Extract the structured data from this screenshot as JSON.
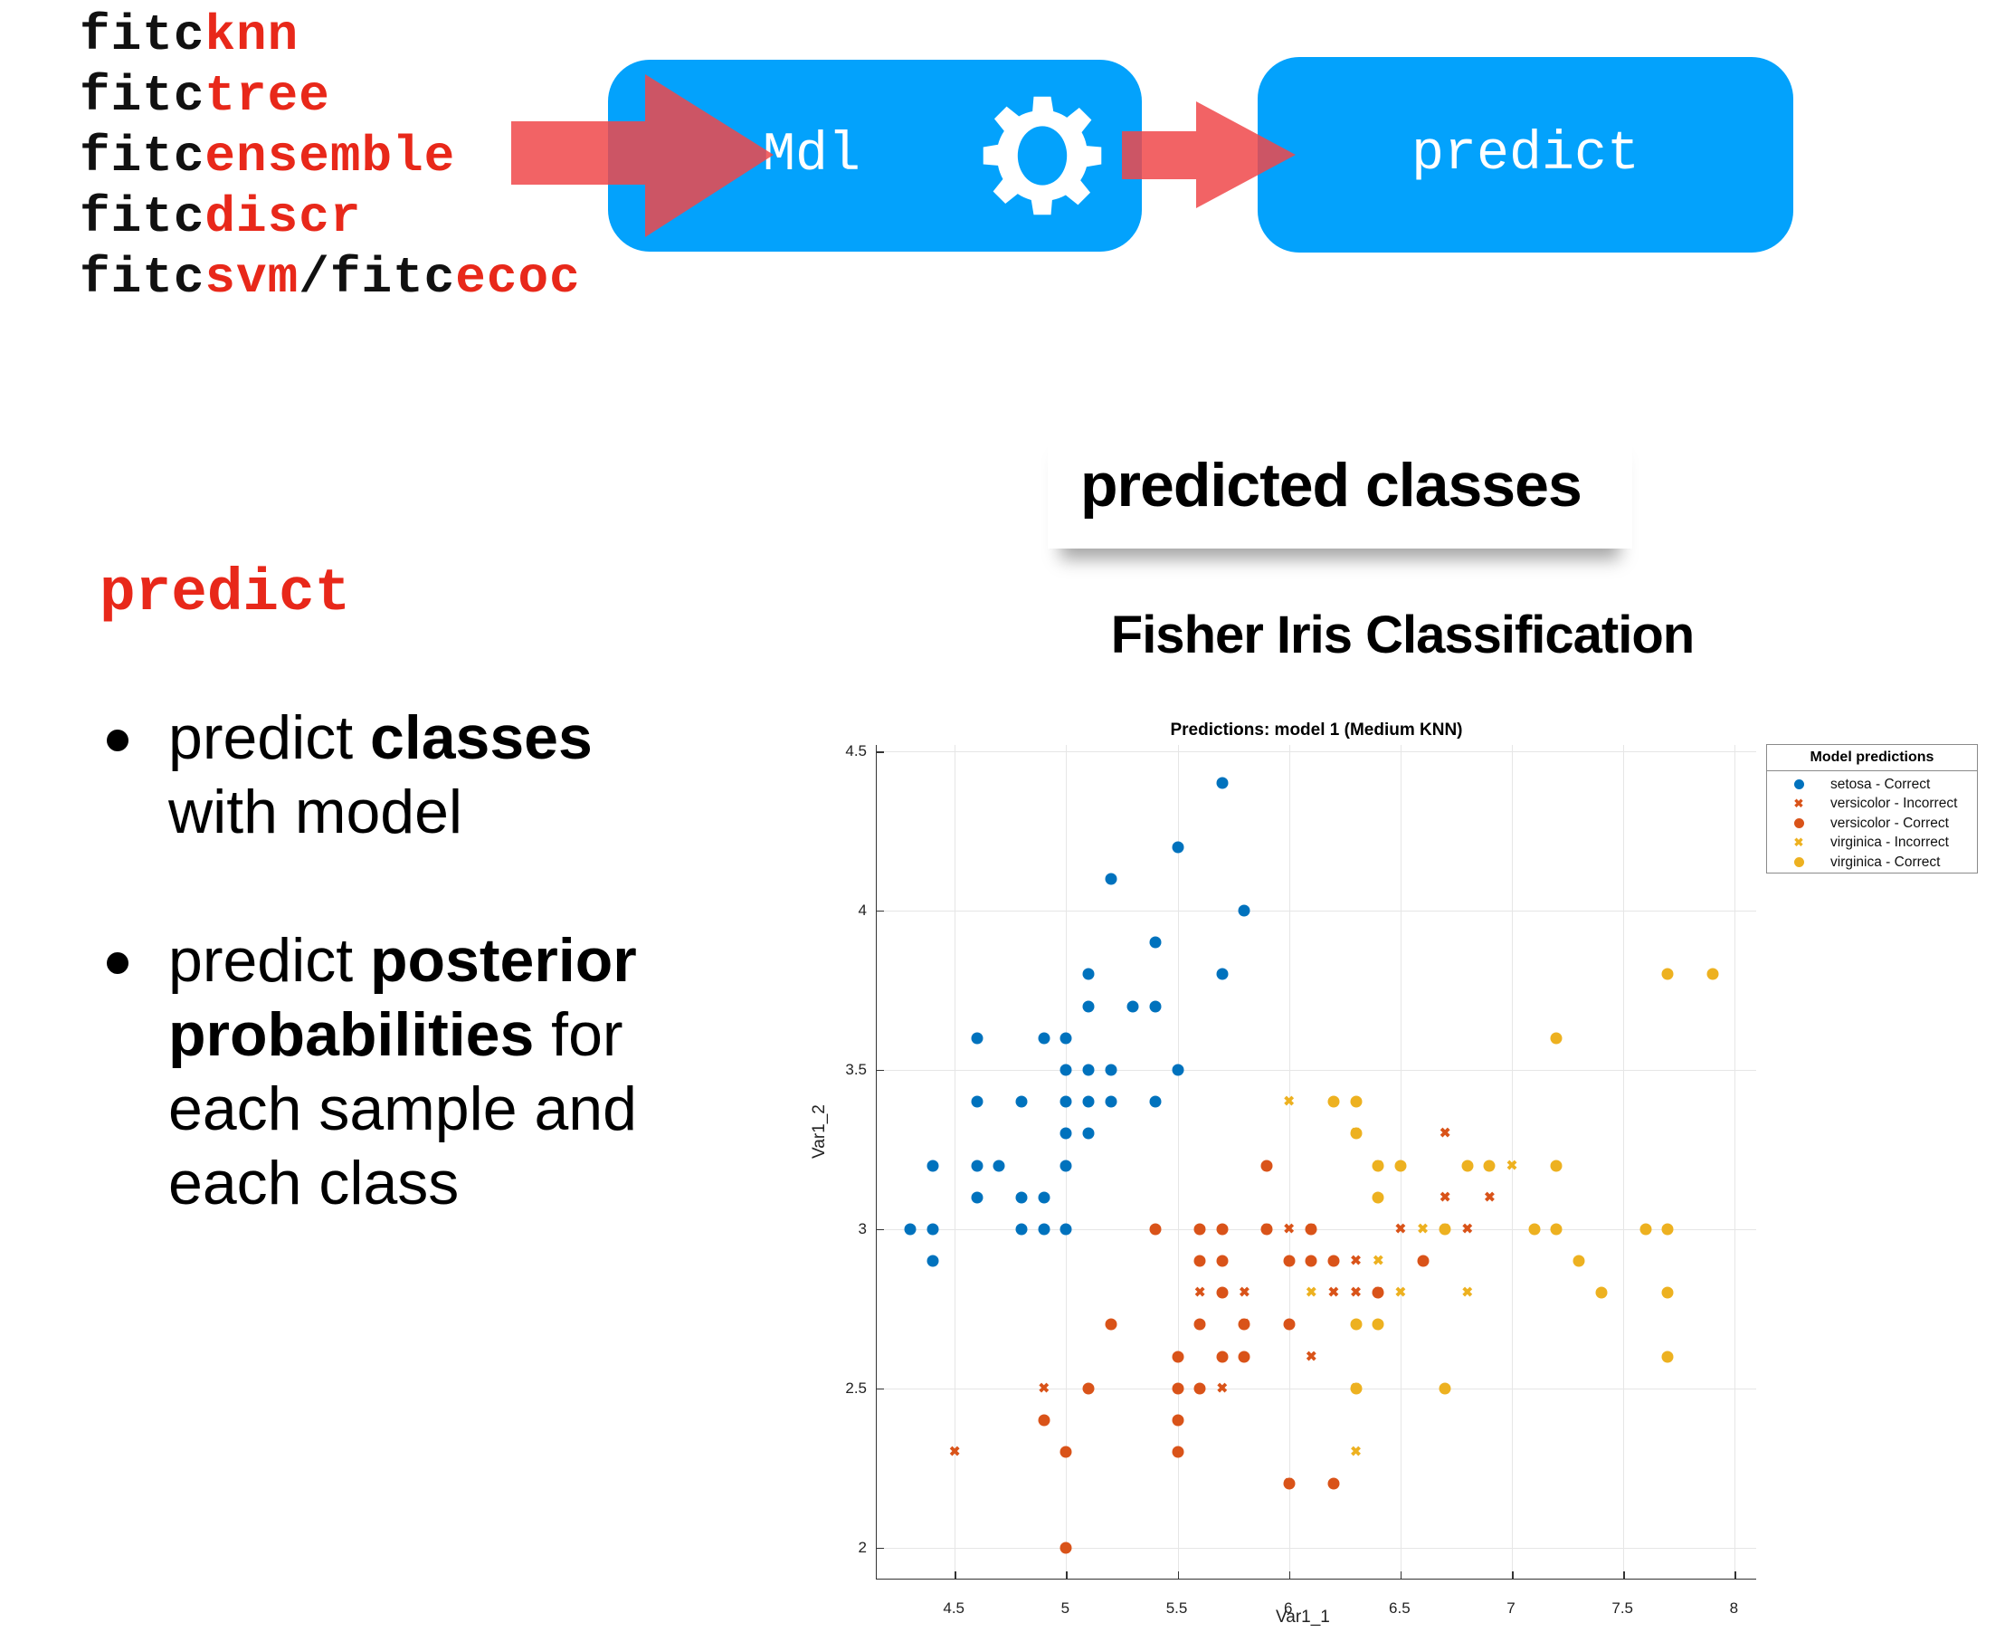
{
  "fit_functions": [
    {
      "prefix": "fitc",
      "suffix": "knn"
    },
    {
      "prefix": "fitc",
      "suffix": "tree"
    },
    {
      "prefix": "fitc",
      "suffix": "ensemble"
    },
    {
      "prefix": "fitc",
      "suffix": "discr"
    },
    {
      "prefix": "fitc",
      "suffix": "svm",
      "sep": "/",
      "prefix2": "fitc",
      "suffix2": "ecoc"
    }
  ],
  "flow": {
    "model_box_label": "Mdl",
    "model_icon": "gear-icon",
    "predict_box_label": "predict",
    "box_color": "#03a2fc",
    "arrow_color": "#f0484a"
  },
  "left": {
    "heading": "predict",
    "bullets": [
      {
        "pre": "predict ",
        "bold": "classes",
        "post": " with model"
      },
      {
        "pre": "predict ",
        "bold": "posterior probabilities",
        "post": " for each sample and each class"
      }
    ]
  },
  "callout": {
    "label": "predicted classes"
  },
  "figure_title": "Fisher Iris Classification",
  "chart_data": {
    "type": "scatter",
    "title": "Predictions: model 1 (Medium KNN)",
    "xlabel": "Var1_1",
    "ylabel": "Var1_2",
    "xlim": [
      4.15,
      8.1
    ],
    "ylim": [
      1.9,
      4.52
    ],
    "xticks": [
      "4.5",
      "5",
      "5.5",
      "6",
      "6.5",
      "7",
      "7.5",
      "8"
    ],
    "yticks": [
      "2",
      "2.5",
      "3",
      "3.5",
      "4",
      "4.5"
    ],
    "grid": true,
    "legend": {
      "title": "Model predictions",
      "position": "outside-right-top",
      "entries": [
        {
          "label": "setosa - Correct",
          "marker": "dot",
          "color": "#0072bd"
        },
        {
          "label": "versicolor - Incorrect",
          "marker": "x",
          "color": "#d95319"
        },
        {
          "label": "versicolor - Correct",
          "marker": "dot",
          "color": "#d95319"
        },
        {
          "label": "virginica - Incorrect",
          "marker": "x",
          "color": "#edb120"
        },
        {
          "label": "virginica - Correct",
          "marker": "dot",
          "color": "#edb120"
        }
      ]
    },
    "series": [
      {
        "name": "setosa - Correct",
        "marker": "dot",
        "color": "#0072bd",
        "points": [
          [
            5.7,
            4.4
          ],
          [
            5.5,
            4.2
          ],
          [
            5.2,
            4.1
          ],
          [
            5.8,
            4.0
          ],
          [
            5.4,
            3.9
          ],
          [
            5.1,
            3.8
          ],
          [
            5.7,
            3.8
          ],
          [
            5.1,
            3.7
          ],
          [
            5.3,
            3.7
          ],
          [
            5.4,
            3.7
          ],
          [
            4.6,
            3.6
          ],
          [
            4.9,
            3.6
          ],
          [
            5.0,
            3.6
          ],
          [
            5.0,
            3.5
          ],
          [
            5.1,
            3.5
          ],
          [
            5.2,
            3.5
          ],
          [
            5.5,
            3.5
          ],
          [
            4.6,
            3.4
          ],
          [
            4.8,
            3.4
          ],
          [
            5.0,
            3.4
          ],
          [
            5.1,
            3.4
          ],
          [
            5.2,
            3.4
          ],
          [
            5.4,
            3.4
          ],
          [
            5.0,
            3.3
          ],
          [
            5.1,
            3.3
          ],
          [
            4.4,
            3.2
          ],
          [
            4.6,
            3.2
          ],
          [
            4.7,
            3.2
          ],
          [
            5.0,
            3.2
          ],
          [
            4.6,
            3.1
          ],
          [
            4.8,
            3.1
          ],
          [
            4.9,
            3.1
          ],
          [
            4.3,
            3.0
          ],
          [
            4.4,
            3.0
          ],
          [
            4.8,
            3.0
          ],
          [
            4.9,
            3.0
          ],
          [
            5.0,
            3.0
          ],
          [
            4.4,
            2.9
          ]
        ]
      },
      {
        "name": "versicolor - Incorrect",
        "marker": "x",
        "color": "#d95319",
        "points": [
          [
            6.7,
            3.3
          ],
          [
            6.7,
            3.1
          ],
          [
            6.9,
            3.1
          ],
          [
            5.9,
            3.0
          ],
          [
            6.0,
            3.0
          ],
          [
            6.1,
            3.0
          ],
          [
            6.5,
            3.0
          ],
          [
            6.8,
            3.0
          ],
          [
            6.3,
            2.9
          ],
          [
            5.6,
            2.8
          ],
          [
            5.8,
            2.8
          ],
          [
            6.2,
            2.8
          ],
          [
            6.3,
            2.8
          ],
          [
            6.4,
            2.8
          ],
          [
            5.8,
            2.7
          ],
          [
            6.1,
            2.6
          ],
          [
            4.9,
            2.5
          ],
          [
            5.7,
            2.5
          ],
          [
            4.5,
            2.3
          ],
          [
            6.0,
            2.2
          ]
        ]
      },
      {
        "name": "versicolor - Correct",
        "marker": "dot",
        "color": "#d95319",
        "points": [
          [
            5.9,
            3.2
          ],
          [
            5.4,
            3.0
          ],
          [
            5.6,
            3.0
          ],
          [
            5.7,
            3.0
          ],
          [
            5.9,
            3.0
          ],
          [
            6.1,
            3.0
          ],
          [
            5.6,
            2.9
          ],
          [
            5.7,
            2.9
          ],
          [
            6.0,
            2.9
          ],
          [
            6.1,
            2.9
          ],
          [
            6.2,
            2.9
          ],
          [
            6.6,
            2.9
          ],
          [
            5.7,
            2.8
          ],
          [
            6.4,
            2.8
          ],
          [
            5.2,
            2.7
          ],
          [
            5.6,
            2.7
          ],
          [
            5.8,
            2.7
          ],
          [
            6.0,
            2.7
          ],
          [
            5.5,
            2.6
          ],
          [
            5.7,
            2.6
          ],
          [
            5.8,
            2.6
          ],
          [
            5.1,
            2.5
          ],
          [
            5.5,
            2.5
          ],
          [
            5.6,
            2.5
          ],
          [
            4.9,
            2.4
          ],
          [
            5.5,
            2.4
          ],
          [
            5.0,
            2.3
          ],
          [
            5.5,
            2.3
          ],
          [
            6.0,
            2.2
          ],
          [
            6.2,
            2.2
          ],
          [
            5.0,
            2.0
          ]
        ]
      },
      {
        "name": "virginica - Incorrect",
        "marker": "x",
        "color": "#edb120",
        "points": [
          [
            6.0,
            3.4
          ],
          [
            6.3,
            3.3
          ],
          [
            6.4,
            3.2
          ],
          [
            7.0,
            3.2
          ],
          [
            6.6,
            3.0
          ],
          [
            6.7,
            3.0
          ],
          [
            6.4,
            2.9
          ],
          [
            6.1,
            2.8
          ],
          [
            6.5,
            2.8
          ],
          [
            6.8,
            2.8
          ],
          [
            6.3,
            2.5
          ],
          [
            6.3,
            2.3
          ]
        ]
      },
      {
        "name": "virginica - Correct",
        "marker": "dot",
        "color": "#edb120",
        "points": [
          [
            7.7,
            3.8
          ],
          [
            7.9,
            3.8
          ],
          [
            7.2,
            3.6
          ],
          [
            6.2,
            3.4
          ],
          [
            6.3,
            3.4
          ],
          [
            6.3,
            3.3
          ],
          [
            6.4,
            3.2
          ],
          [
            6.5,
            3.2
          ],
          [
            6.8,
            3.2
          ],
          [
            6.9,
            3.2
          ],
          [
            7.2,
            3.2
          ],
          [
            6.4,
            3.1
          ],
          [
            6.7,
            3.0
          ],
          [
            7.1,
            3.0
          ],
          [
            7.2,
            3.0
          ],
          [
            7.6,
            3.0
          ],
          [
            7.7,
            3.0
          ],
          [
            7.3,
            2.9
          ],
          [
            7.4,
            2.8
          ],
          [
            7.7,
            2.8
          ],
          [
            6.3,
            2.7
          ],
          [
            6.4,
            2.7
          ],
          [
            7.7,
            2.6
          ],
          [
            6.3,
            2.5
          ],
          [
            6.7,
            2.5
          ]
        ]
      }
    ]
  }
}
